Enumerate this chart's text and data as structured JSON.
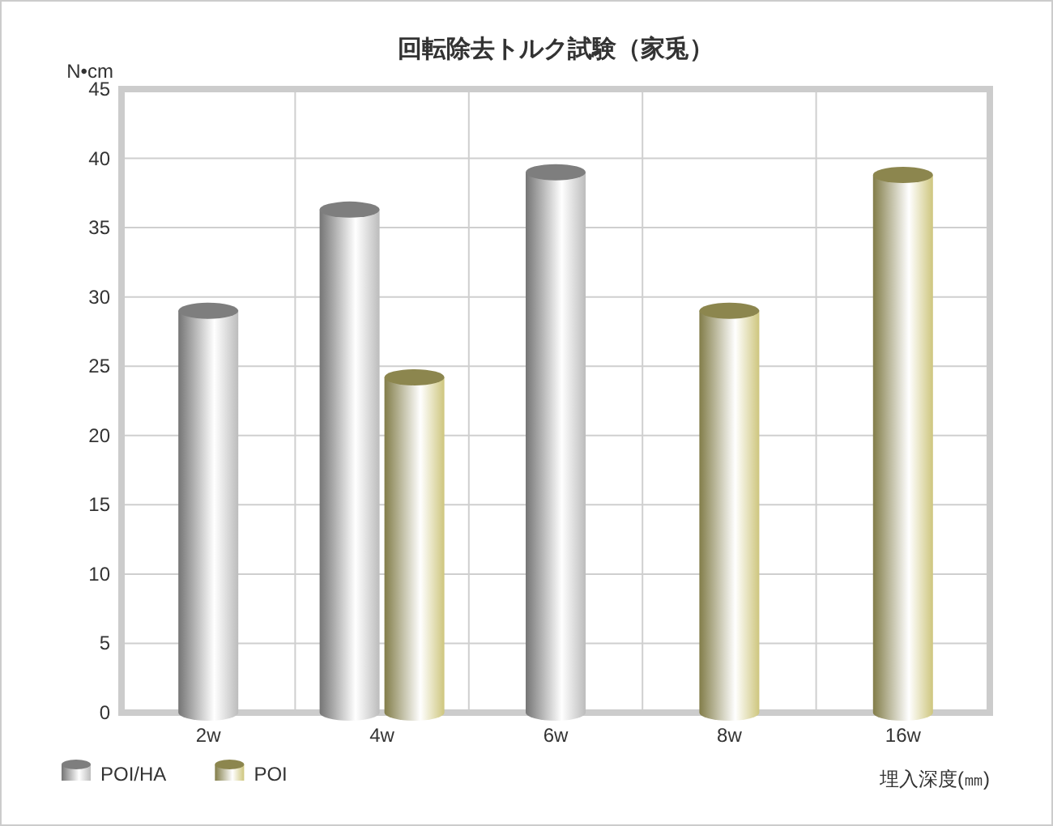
{
  "chart_data": {
    "type": "bar",
    "title": "回転除去トルク試験（家兎）",
    "ylabel": "N•cm",
    "xlabel": "埋入深度(㎜)",
    "categories": [
      "2w",
      "4w",
      "6w",
      "8w",
      "16w"
    ],
    "series": [
      {
        "name": "POI/HA",
        "color": "#b4b4b4",
        "values": [
          29,
          36.3,
          39,
          null,
          null
        ]
      },
      {
        "name": "POI",
        "color": "#c8c070",
        "values": [
          null,
          24.2,
          null,
          29,
          38.8
        ]
      }
    ],
    "ylim": [
      0,
      45
    ],
    "yticks": [
      0,
      5,
      10,
      15,
      20,
      25,
      30,
      35,
      40,
      45
    ],
    "grid": true,
    "legend": "bottom left"
  }
}
